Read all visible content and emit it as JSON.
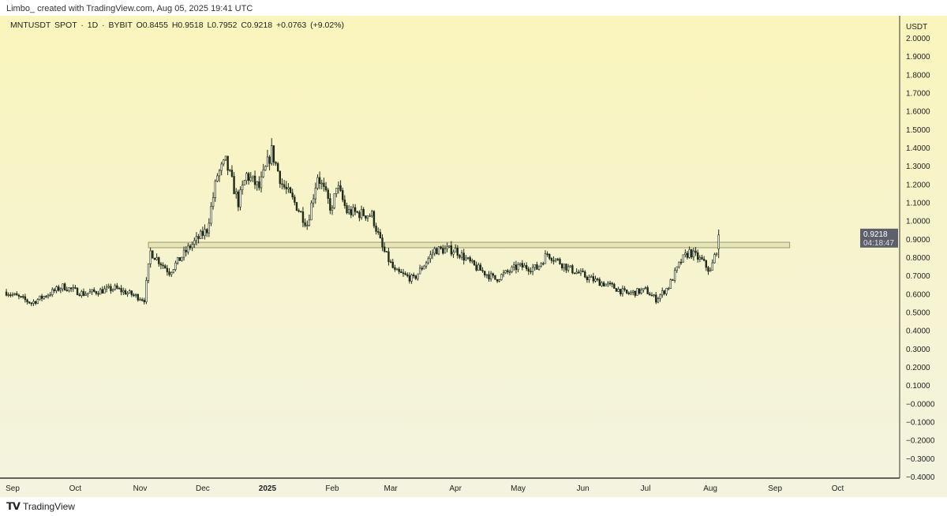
{
  "header": {
    "credit": "Limbo_ created with TradingView.com, Aug 05, 2025 19:41 UTC"
  },
  "legend": {
    "symbol": "MNTUSDT SPOT · 1D · BYBIT",
    "open": "O0.8455",
    "high": "H0.9518",
    "low": "L0.7952",
    "close": "C0.9218",
    "change": "+0.0763 (+9.02%)"
  },
  "footer": {
    "brand": "TradingView",
    "logo": "TV"
  },
  "colors": {
    "candle": "#1e2a1a",
    "zone_fill": "#e2e2b0",
    "zone_stroke": "#9a9a70",
    "price_tag": "#5d606b",
    "axis": "#333333"
  },
  "chart_data": {
    "type": "candlestick",
    "title": "MNTUSDT SPOT · 1D · BYBIT",
    "ylabel": "USDT",
    "ylim": [
      -0.4,
      2.0
    ],
    "yticks": [
      "2.0000",
      "1.9000",
      "1.8000",
      "1.7000",
      "1.6000",
      "1.5000",
      "1.4000",
      "1.3000",
      "1.2000",
      "1.1000",
      "1.0000",
      "0.9000",
      "0.8000",
      "0.7000",
      "0.6000",
      "0.5000",
      "0.4000",
      "0.3000",
      "0.2000",
      "0.1000",
      "−0.0000",
      "−0.1000",
      "−0.2000",
      "−0.3000",
      "−0.4000"
    ],
    "xticks": [
      {
        "label": "Sep",
        "date": "2024-09-01"
      },
      {
        "label": "Oct",
        "date": "2024-10-01"
      },
      {
        "label": "Nov",
        "date": "2024-11-01"
      },
      {
        "label": "Dec",
        "date": "2024-12-01"
      },
      {
        "label": "2025",
        "date": "2025-01-01",
        "bold": true
      },
      {
        "label": "Feb",
        "date": "2025-02-01"
      },
      {
        "label": "Mar",
        "date": "2025-03-01"
      },
      {
        "label": "Apr",
        "date": "2025-04-01"
      },
      {
        "label": "May",
        "date": "2025-05-01"
      },
      {
        "label": "Jun",
        "date": "2025-06-01"
      },
      {
        "label": "Jul",
        "date": "2025-07-01"
      },
      {
        "label": "Aug",
        "date": "2025-08-01"
      },
      {
        "label": "Sep",
        "date": "2025-09-01"
      },
      {
        "label": "Oct",
        "date": "2025-10-01"
      }
    ],
    "close_keypoints": [
      [
        "2024-08-29",
        0.61
      ],
      [
        "2024-09-10",
        0.55
      ],
      [
        "2024-09-25",
        0.64
      ],
      [
        "2024-10-05",
        0.6
      ],
      [
        "2024-10-20",
        0.63
      ],
      [
        "2024-11-03",
        0.57
      ],
      [
        "2024-11-06",
        0.83
      ],
      [
        "2024-11-15",
        0.72
      ],
      [
        "2024-11-25",
        0.86
      ],
      [
        "2024-12-03",
        0.95
      ],
      [
        "2024-12-08",
        1.25
      ],
      [
        "2024-12-12",
        1.32
      ],
      [
        "2024-12-18",
        1.1
      ],
      [
        "2024-12-22",
        1.25
      ],
      [
        "2024-12-28",
        1.18
      ],
      [
        "2025-01-03",
        1.38
      ],
      [
        "2025-01-08",
        1.2
      ],
      [
        "2025-01-15",
        1.08
      ],
      [
        "2025-01-20",
        0.98
      ],
      [
        "2025-01-25",
        1.25
      ],
      [
        "2025-02-01",
        1.05
      ],
      [
        "2025-02-03",
        1.2
      ],
      [
        "2025-02-08",
        1.05
      ],
      [
        "2025-02-20",
        1.03
      ],
      [
        "2025-02-25",
        0.85
      ],
      [
        "2025-03-03",
        0.72
      ],
      [
        "2025-03-12",
        0.68
      ],
      [
        "2025-03-22",
        0.84
      ],
      [
        "2025-04-01",
        0.84
      ],
      [
        "2025-04-10",
        0.75
      ],
      [
        "2025-04-20",
        0.68
      ],
      [
        "2025-05-01",
        0.75
      ],
      [
        "2025-05-10",
        0.74
      ],
      [
        "2025-05-15",
        0.82
      ],
      [
        "2025-05-25",
        0.74
      ],
      [
        "2025-06-05",
        0.68
      ],
      [
        "2025-06-15",
        0.64
      ],
      [
        "2025-06-22",
        0.6
      ],
      [
        "2025-07-01",
        0.62
      ],
      [
        "2025-07-06",
        0.57
      ],
      [
        "2025-07-12",
        0.64
      ],
      [
        "2025-07-18",
        0.78
      ],
      [
        "2025-07-22",
        0.83
      ],
      [
        "2025-07-28",
        0.78
      ],
      [
        "2025-08-01",
        0.72
      ],
      [
        "2025-08-04",
        0.8455
      ]
    ],
    "last_candle": {
      "date": "2025-08-05",
      "open": 0.8455,
      "high": 0.9518,
      "low": 0.7952,
      "close": 0.9218
    },
    "resistance_zone": {
      "from": "2024-11-05",
      "to": "2025-09-08",
      "low": 0.852,
      "high": 0.882
    },
    "price_tag": {
      "price": "0.9218",
      "countdown": "04:18:47"
    }
  }
}
